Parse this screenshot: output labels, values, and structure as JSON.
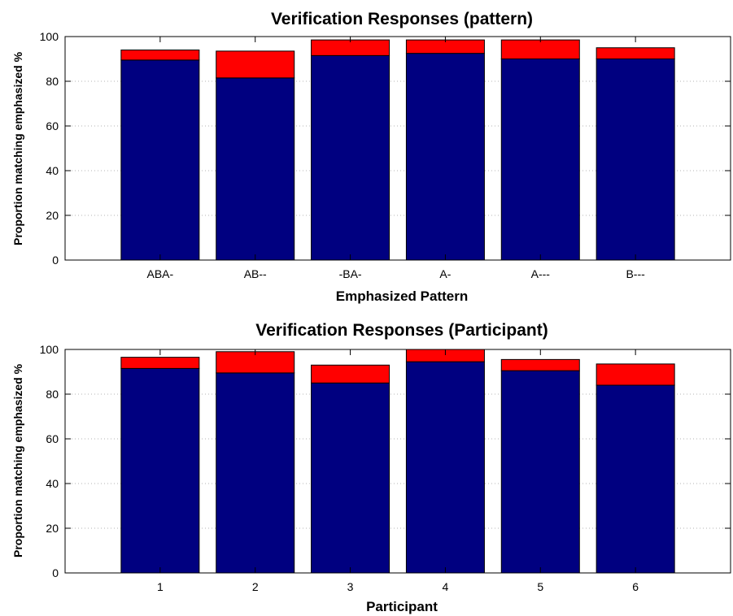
{
  "colors": {
    "lower": "#000080",
    "upper": "#ff0000",
    "grid": "#b3b3b3",
    "axis": "#000000"
  },
  "chart_data": [
    {
      "type": "bar",
      "stacked": true,
      "title": "Verification Responses (pattern)",
      "xlabel": "Emphasized Pattern",
      "ylabel": "Proportion matching emphasized %",
      "ylim": [
        0,
        100
      ],
      "yticks": [
        0,
        20,
        40,
        60,
        80,
        100
      ],
      "grid": "y-dotted",
      "categories": [
        "ABA-",
        "AB--",
        "-BA-",
        "A-",
        "A---",
        "B---"
      ],
      "series": [
        {
          "values": [
            89.5,
            81.5,
            91.5,
            92.5,
            90,
            90
          ]
        },
        {
          "values": [
            4.5,
            12,
            7,
            6,
            8.5,
            5
          ]
        }
      ]
    },
    {
      "type": "bar",
      "stacked": true,
      "title": "Verification Responses (Participant)",
      "xlabel": "Participant",
      "ylabel": "Proportion matching emphasized %",
      "ylim": [
        0,
        100
      ],
      "yticks": [
        0,
        20,
        40,
        60,
        80,
        100
      ],
      "grid": "y-dotted",
      "categories": [
        "1",
        "2",
        "3",
        "4",
        "5",
        "6"
      ],
      "series": [
        {
          "values": [
            91.5,
            89.5,
            85,
            94.5,
            90.5,
            84
          ]
        },
        {
          "values": [
            5,
            9.5,
            8,
            5.5,
            5,
            9.5
          ]
        }
      ]
    }
  ]
}
